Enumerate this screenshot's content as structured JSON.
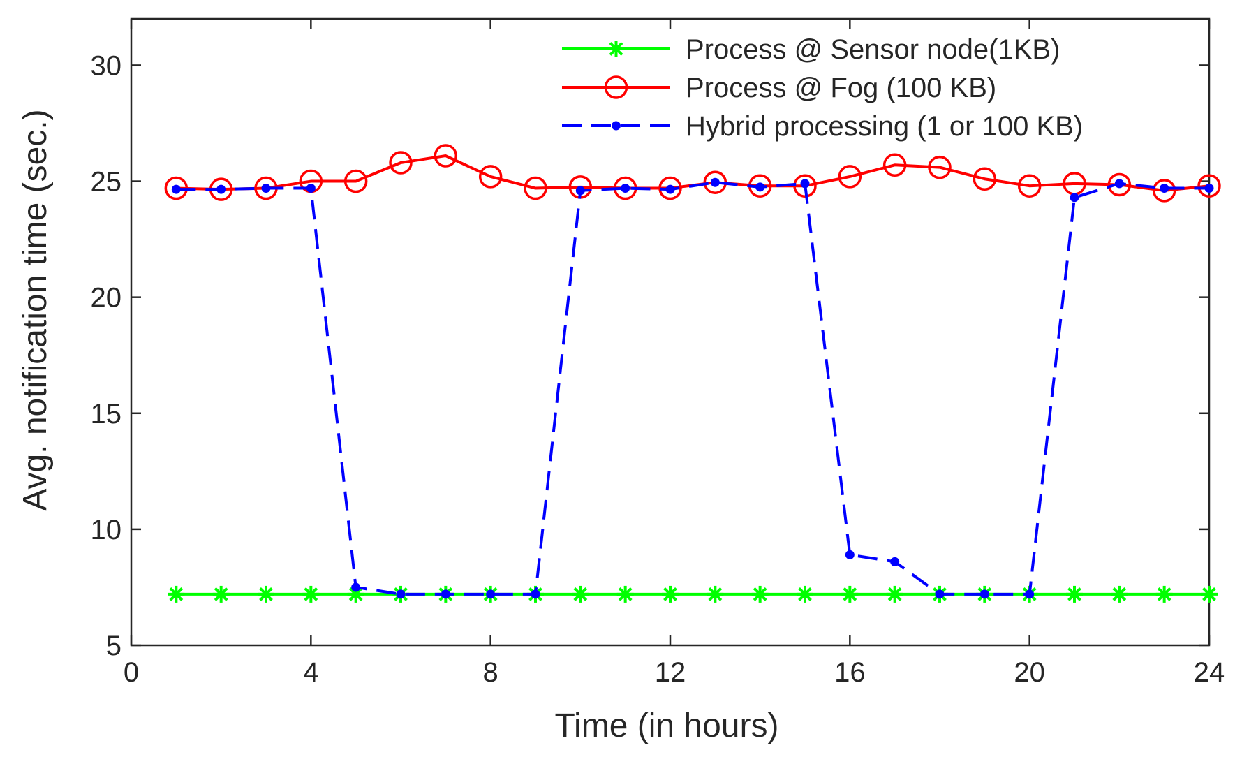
{
  "chart_data": {
    "type": "line",
    "title": "",
    "xlabel": "Time (in hours)",
    "ylabel": "Avg. notification time (sec.)",
    "xlim": [
      0,
      24
    ],
    "ylim": [
      5,
      32
    ],
    "xticks": [
      0,
      4,
      8,
      12,
      16,
      20,
      24
    ],
    "yticks": [
      5,
      10,
      15,
      20,
      25,
      30
    ],
    "grid": false,
    "legend_position": "top-right",
    "x": [
      1,
      2,
      3,
      4,
      5,
      6,
      7,
      8,
      9,
      10,
      11,
      12,
      13,
      14,
      15,
      16,
      17,
      18,
      19,
      20,
      21,
      22,
      23,
      24
    ],
    "series": [
      {
        "name": "Process @ Sensor node(1KB)",
        "color": "#00ff00",
        "marker": "asterisk",
        "line_style": "solid",
        "values": [
          7.2,
          7.2,
          7.2,
          7.2,
          7.2,
          7.2,
          7.2,
          7.2,
          7.2,
          7.2,
          7.2,
          7.2,
          7.2,
          7.2,
          7.2,
          7.2,
          7.2,
          7.2,
          7.2,
          7.2,
          7.2,
          7.2,
          7.2,
          7.2
        ]
      },
      {
        "name": "Process @ Fog (100 KB)",
        "color": "#ff0000",
        "marker": "circle",
        "line_style": "solid",
        "values": [
          24.7,
          24.65,
          24.7,
          25.0,
          25.0,
          25.8,
          26.1,
          25.2,
          24.7,
          24.75,
          24.7,
          24.7,
          24.95,
          24.8,
          24.8,
          25.2,
          25.7,
          25.6,
          25.1,
          24.8,
          24.9,
          24.85,
          24.6,
          24.8
        ]
      },
      {
        "name": "Hybrid processing (1 or 100 KB)",
        "color": "#0000ff",
        "marker": "dot",
        "line_style": "dashed",
        "values": [
          24.65,
          24.65,
          24.7,
          24.7,
          7.5,
          7.2,
          7.2,
          7.2,
          7.2,
          24.6,
          24.7,
          24.65,
          24.95,
          24.75,
          24.9,
          8.9,
          8.6,
          7.2,
          7.2,
          7.2,
          24.3,
          24.9,
          24.7,
          24.7
        ]
      }
    ]
  }
}
